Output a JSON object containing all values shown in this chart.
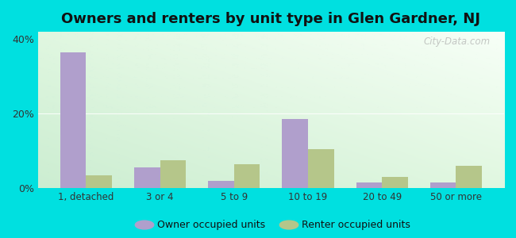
{
  "title": "Owners and renters by unit type in Glen Gardner, NJ",
  "categories": [
    "1, detached",
    "3 or 4",
    "5 to 9",
    "10 to 19",
    "20 to 49",
    "50 or more"
  ],
  "owner_values": [
    36.5,
    5.5,
    2.0,
    18.5,
    1.5,
    1.5
  ],
  "renter_values": [
    3.5,
    7.5,
    6.5,
    10.5,
    3.0,
    6.0
  ],
  "owner_color": "#b09fcc",
  "renter_color": "#b5c68a",
  "background_outer": "#00e0e0",
  "ylim": [
    0,
    42
  ],
  "yticks": [
    0,
    20,
    40
  ],
  "ytick_labels": [
    "0%",
    "20%",
    "40%"
  ],
  "bar_width": 0.35,
  "legend_owner": "Owner occupied units",
  "legend_renter": "Renter occupied units",
  "title_fontsize": 13,
  "watermark": "City-Data.com"
}
